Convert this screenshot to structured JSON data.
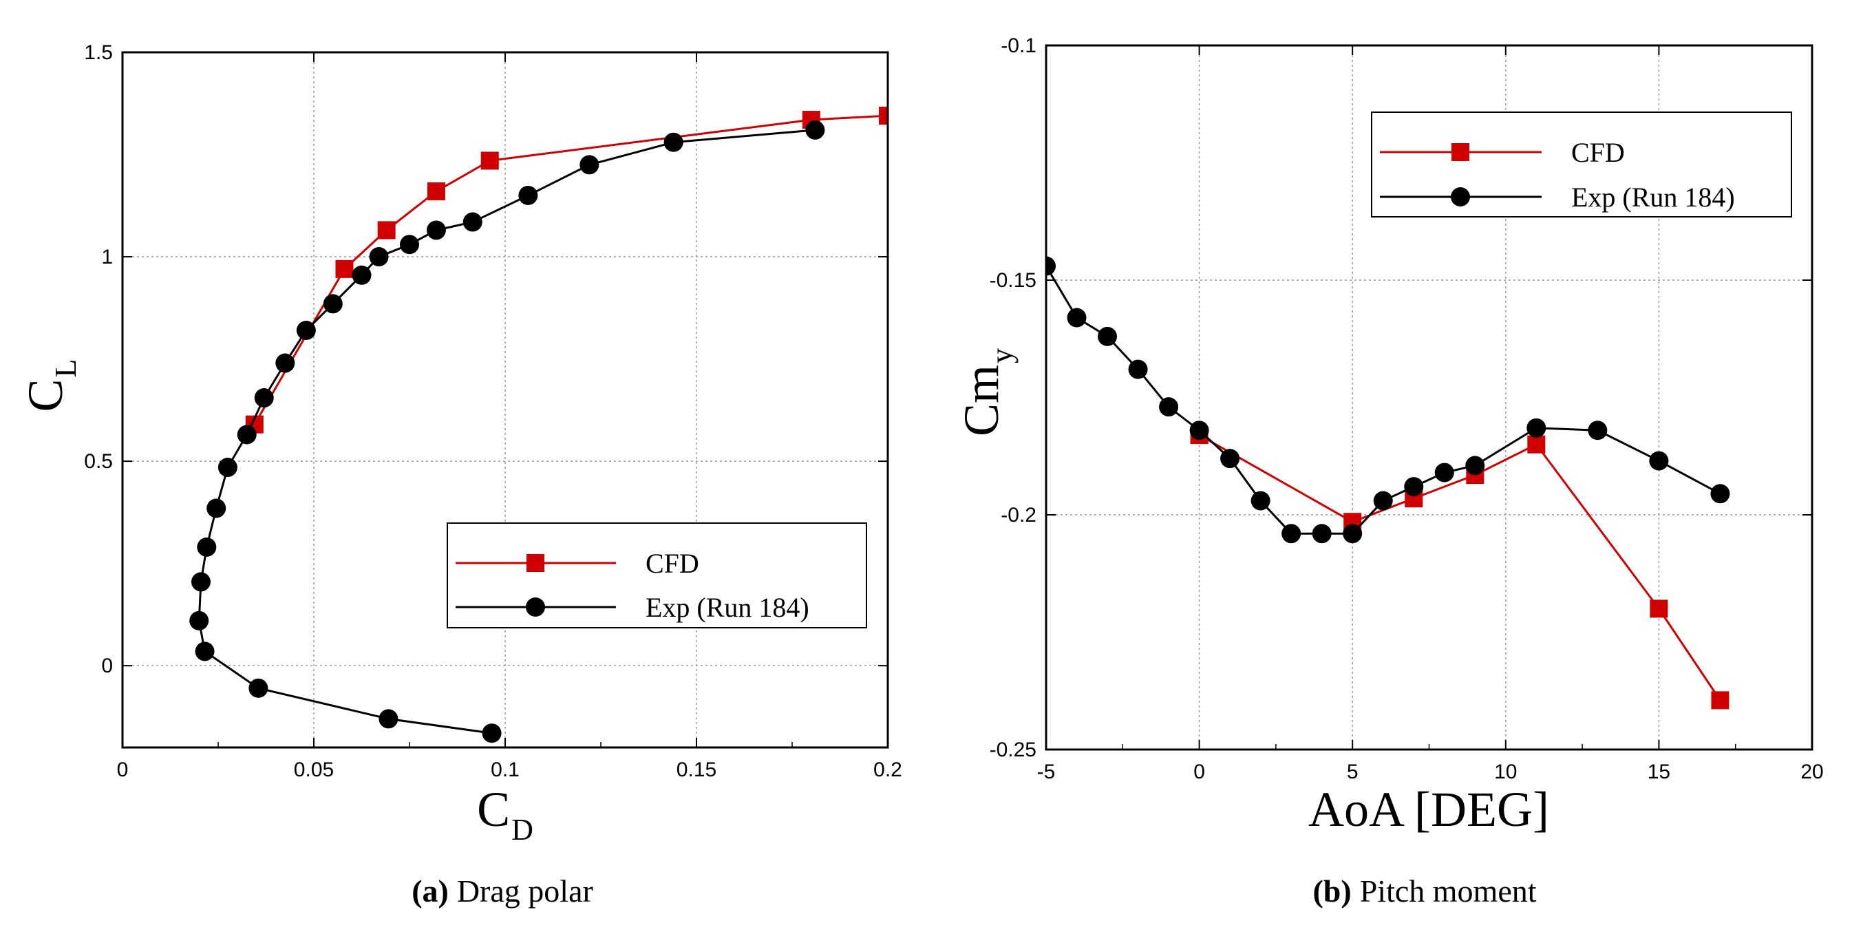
{
  "chart_data": [
    {
      "type": "line",
      "caption_letter": "(a)",
      "caption_text": "Drag polar",
      "xlabel": "C",
      "xlabel_sub": "D",
      "ylabel": "C",
      "ylabel_sub": "L",
      "xlim": [
        0,
        0.2
      ],
      "ylim": [
        -0.2,
        1.5
      ],
      "xticks": [
        0,
        0.05,
        0.1,
        0.15,
        0.2
      ],
      "xtick_labels": [
        "0",
        "0.05",
        "0.1",
        "0.15",
        "0.2"
      ],
      "yticks": [
        0,
        0.5,
        1,
        1.5
      ],
      "ytick_labels": [
        "0",
        "0.5",
        "1",
        "1.5"
      ],
      "grid": true,
      "legend_position": "lower-right",
      "series": [
        {
          "name": "CFD",
          "color": "#d00000",
          "marker": "square",
          "points": [
            [
              0.0345,
              0.59
            ],
            [
              0.058,
              0.97
            ],
            [
              0.069,
              1.065
            ],
            [
              0.082,
              1.16
            ],
            [
              0.096,
              1.235
            ],
            [
              0.18,
              1.335
            ],
            [
              0.2,
              1.345
            ]
          ]
        },
        {
          "name": "Exp (Run 184)",
          "color": "#000000",
          "marker": "circle",
          "points": [
            [
              0.0965,
              -0.165
            ],
            [
              0.0695,
              -0.13
            ],
            [
              0.0355,
              -0.055
            ],
            [
              0.0215,
              0.035
            ],
            [
              0.02,
              0.11
            ],
            [
              0.0205,
              0.205
            ],
            [
              0.022,
              0.29
            ],
            [
              0.0245,
              0.385
            ],
            [
              0.0275,
              0.485
            ],
            [
              0.0325,
              0.565
            ],
            [
              0.037,
              0.655
            ],
            [
              0.0425,
              0.74
            ],
            [
              0.048,
              0.82
            ],
            [
              0.055,
              0.885
            ],
            [
              0.0625,
              0.955
            ],
            [
              0.067,
              1.0
            ],
            [
              0.075,
              1.03
            ],
            [
              0.082,
              1.065
            ],
            [
              0.0915,
              1.085
            ],
            [
              0.106,
              1.15
            ],
            [
              0.122,
              1.225
            ],
            [
              0.144,
              1.28
            ],
            [
              0.181,
              1.31
            ]
          ]
        }
      ]
    },
    {
      "type": "line",
      "caption_letter": "(b)",
      "caption_text": "Pitch moment",
      "xlabel": "AoA [DEG]",
      "ylabel": "Cm",
      "ylabel_sub": "y",
      "xlim": [
        -5,
        20
      ],
      "ylim": [
        -0.25,
        -0.1
      ],
      "xticks": [
        -5,
        0,
        5,
        10,
        15,
        20
      ],
      "xtick_labels": [
        "-5",
        "0",
        "5",
        "10",
        "15",
        "20"
      ],
      "yticks": [
        -0.25,
        -0.2,
        -0.15,
        -0.1
      ],
      "ytick_labels": [
        "-0.25",
        "-0.2",
        "-0.15",
        "-0.1"
      ],
      "grid": true,
      "legend_position": "top-right",
      "series": [
        {
          "name": "CFD",
          "color": "#d00000",
          "marker": "square",
          "points": [
            [
              0,
              -0.183
            ],
            [
              5,
              -0.2015
            ],
            [
              7,
              -0.1965
            ],
            [
              9,
              -0.1915
            ],
            [
              11,
              -0.185
            ],
            [
              15,
              -0.22
            ],
            [
              17,
              -0.2395
            ]
          ]
        },
        {
          "name": "Exp (Run 184)",
          "color": "#000000",
          "marker": "circle",
          "points": [
            [
              -5,
              -0.147
            ],
            [
              -4,
              -0.158
            ],
            [
              -3,
              -0.162
            ],
            [
              -2,
              -0.169
            ],
            [
              -1,
              -0.177
            ],
            [
              0,
              -0.182
            ],
            [
              1,
              -0.188
            ],
            [
              2,
              -0.197
            ],
            [
              3,
              -0.204
            ],
            [
              4,
              -0.204
            ],
            [
              5,
              -0.204
            ],
            [
              6,
              -0.197
            ],
            [
              7,
              -0.194
            ],
            [
              8,
              -0.191
            ],
            [
              9,
              -0.1895
            ],
            [
              11,
              -0.1815
            ],
            [
              13,
              -0.182
            ],
            [
              15,
              -0.1885
            ],
            [
              17,
              -0.1955
            ]
          ]
        }
      ]
    }
  ]
}
